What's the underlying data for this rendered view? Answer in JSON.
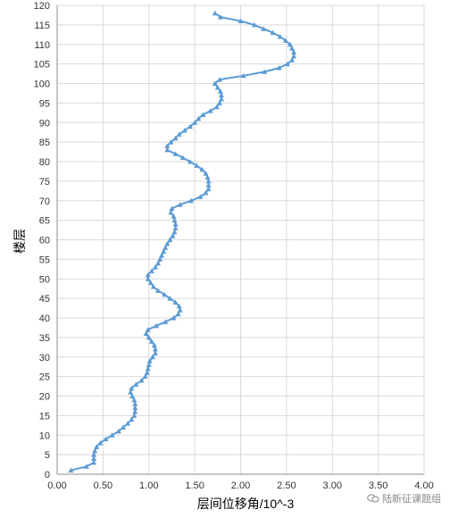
{
  "chart_data": {
    "type": "line",
    "xlabel": "层间位移角/10^-3",
    "ylabel": "楼层",
    "xlim": [
      0,
      4
    ],
    "ylim": [
      0,
      120
    ],
    "x_ticks": [
      "0.00",
      "0.50",
      "1.00",
      "1.50",
      "2.00",
      "2.50",
      "3.00",
      "3.50",
      "4.00"
    ],
    "y_ticks": [
      "0",
      "5",
      "10",
      "15",
      "20",
      "25",
      "30",
      "35",
      "40",
      "45",
      "50",
      "55",
      "60",
      "65",
      "70",
      "75",
      "80",
      "85",
      "90",
      "95",
      "100",
      "105",
      "110",
      "115",
      "120"
    ],
    "grid": true,
    "series": [
      {
        "marker": "triangle",
        "color": "#5B9BD5",
        "points": [
          [
            0.15,
            1
          ],
          [
            0.32,
            2
          ],
          [
            0.4,
            3
          ],
          [
            0.4,
            4
          ],
          [
            0.4,
            5
          ],
          [
            0.41,
            6
          ],
          [
            0.43,
            7
          ],
          [
            0.47,
            8
          ],
          [
            0.53,
            9
          ],
          [
            0.6,
            10
          ],
          [
            0.67,
            11
          ],
          [
            0.72,
            12
          ],
          [
            0.77,
            13
          ],
          [
            0.81,
            14
          ],
          [
            0.84,
            15
          ],
          [
            0.85,
            16
          ],
          [
            0.85,
            17
          ],
          [
            0.85,
            18
          ],
          [
            0.84,
            19
          ],
          [
            0.82,
            20
          ],
          [
            0.8,
            21
          ],
          [
            0.81,
            22
          ],
          [
            0.86,
            23
          ],
          [
            0.92,
            24
          ],
          [
            0.96,
            25
          ],
          [
            0.98,
            26
          ],
          [
            0.99,
            27
          ],
          [
            1.0,
            28
          ],
          [
            1.01,
            29
          ],
          [
            1.04,
            30
          ],
          [
            1.07,
            31
          ],
          [
            1.07,
            32
          ],
          [
            1.06,
            33
          ],
          [
            1.03,
            34
          ],
          [
            1.0,
            35
          ],
          [
            0.97,
            36
          ],
          [
            0.99,
            37
          ],
          [
            1.08,
            38
          ],
          [
            1.18,
            39
          ],
          [
            1.27,
            40
          ],
          [
            1.32,
            41
          ],
          [
            1.34,
            42
          ],
          [
            1.33,
            43
          ],
          [
            1.29,
            44
          ],
          [
            1.23,
            45
          ],
          [
            1.17,
            46
          ],
          [
            1.1,
            47
          ],
          [
            1.05,
            48
          ],
          [
            1.02,
            49
          ],
          [
            0.99,
            50
          ],
          [
            0.99,
            51
          ],
          [
            1.03,
            52
          ],
          [
            1.07,
            53
          ],
          [
            1.1,
            54
          ],
          [
            1.12,
            55
          ],
          [
            1.14,
            56
          ],
          [
            1.16,
            57
          ],
          [
            1.18,
            58
          ],
          [
            1.2,
            59
          ],
          [
            1.23,
            60
          ],
          [
            1.26,
            61
          ],
          [
            1.28,
            62
          ],
          [
            1.29,
            63
          ],
          [
            1.29,
            64
          ],
          [
            1.28,
            65
          ],
          [
            1.27,
            66
          ],
          [
            1.24,
            67
          ],
          [
            1.25,
            68
          ],
          [
            1.34,
            69
          ],
          [
            1.46,
            70
          ],
          [
            1.56,
            71
          ],
          [
            1.62,
            72
          ],
          [
            1.65,
            73
          ],
          [
            1.65,
            74
          ],
          [
            1.65,
            75
          ],
          [
            1.64,
            76
          ],
          [
            1.62,
            77
          ],
          [
            1.58,
            78
          ],
          [
            1.52,
            79
          ],
          [
            1.45,
            80
          ],
          [
            1.37,
            81
          ],
          [
            1.29,
            82
          ],
          [
            1.2,
            83
          ],
          [
            1.2,
            84
          ],
          [
            1.24,
            85
          ],
          [
            1.29,
            86
          ],
          [
            1.33,
            87
          ],
          [
            1.39,
            88
          ],
          [
            1.45,
            89
          ],
          [
            1.5,
            90
          ],
          [
            1.54,
            91
          ],
          [
            1.59,
            92
          ],
          [
            1.67,
            93
          ],
          [
            1.74,
            94
          ],
          [
            1.77,
            95
          ],
          [
            1.79,
            96
          ],
          [
            1.79,
            97
          ],
          [
            1.78,
            98
          ],
          [
            1.75,
            99
          ],
          [
            1.72,
            100
          ],
          [
            1.77,
            101
          ],
          [
            2.03,
            102
          ],
          [
            2.26,
            103
          ],
          [
            2.42,
            104
          ],
          [
            2.51,
            105
          ],
          [
            2.56,
            106
          ],
          [
            2.58,
            107
          ],
          [
            2.58,
            108
          ],
          [
            2.56,
            109
          ],
          [
            2.54,
            110
          ],
          [
            2.49,
            111
          ],
          [
            2.43,
            112
          ],
          [
            2.35,
            113
          ],
          [
            2.25,
            114
          ],
          [
            2.15,
            115
          ],
          [
            2.0,
            116
          ],
          [
            1.78,
            117
          ],
          [
            1.72,
            118
          ]
        ]
      }
    ]
  },
  "watermark": {
    "icon": "wechat-icon",
    "text": "陆新征课题组"
  }
}
